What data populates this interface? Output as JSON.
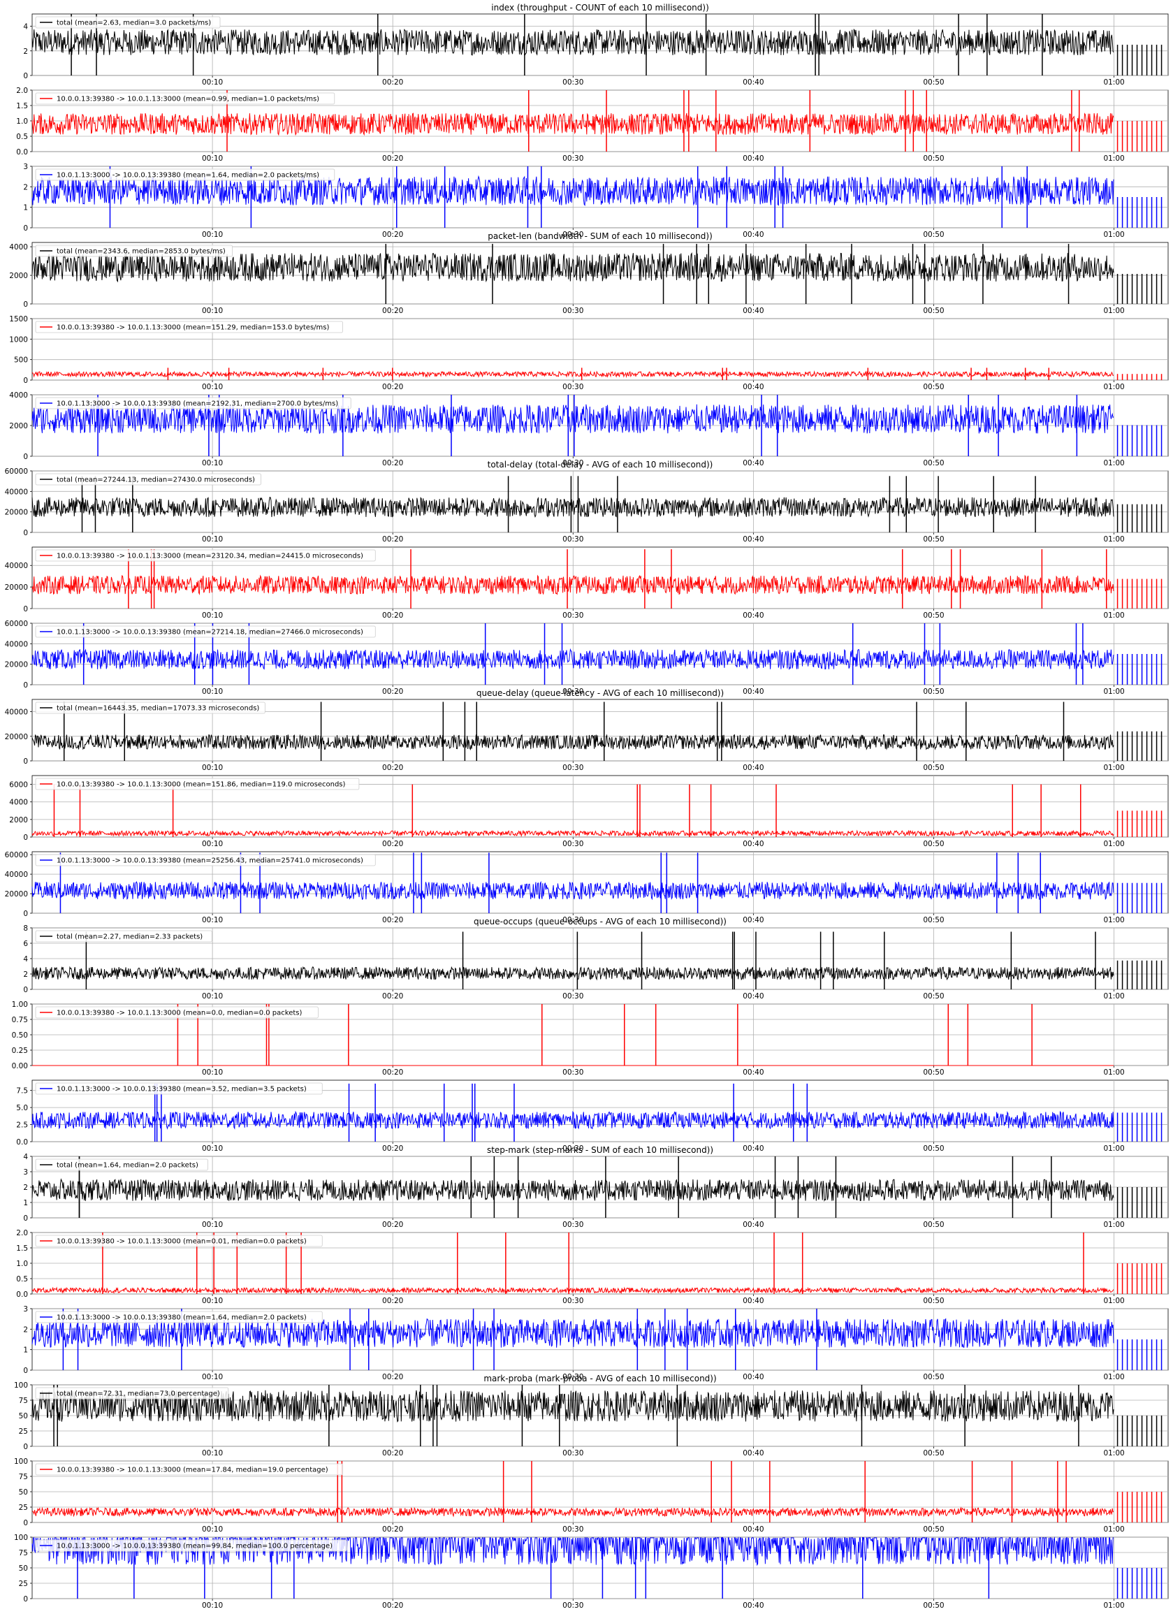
{
  "chart_data": {
    "type": "line",
    "x_tick_labels": [
      "00:10",
      "00:20",
      "00:30",
      "00:40",
      "00:50",
      "01:00"
    ],
    "x_tick_minutes": [
      10,
      20,
      30,
      40,
      50,
      60
    ],
    "x_range_minutes": [
      0,
      63
    ],
    "grid": true,
    "legend_position": "upper left",
    "colors": {
      "total": "#000000",
      "up": "#ff0000",
      "down": "#0000ff"
    },
    "groups": [
      {
        "title": "index (throughput - COUNT of each 10 millisecond))",
        "panels": [
          {
            "series": "total",
            "legend": "total (mean=2.63, median=3.0 packets/ms)",
            "ylim": [
              0,
              5
            ],
            "yticks": [
              "0",
              "2",
              "4"
            ],
            "ytick_values": [
              0,
              2,
              4
            ],
            "mean": 2.63,
            "median": 3.0,
            "spike_max": 5
          },
          {
            "series": "up",
            "legend": "10.0.0.13:39380 -> 10.0.1.13:3000 (mean=0.99, median=1.0 packets/ms)",
            "ylim": [
              0,
              2
            ],
            "yticks": [
              "0.0",
              "0.5",
              "1.0",
              "1.5",
              "2.0"
            ],
            "ytick_values": [
              0,
              0.5,
              1,
              1.5,
              2
            ],
            "mean": 0.99,
            "median": 1.0,
            "spike_max": 2
          },
          {
            "series": "down",
            "legend": "10.0.1.13:3000 -> 10.0.0.13:39380 (mean=1.64, median=2.0 packets/ms)",
            "ylim": [
              0,
              3
            ],
            "yticks": [
              "0",
              "1",
              "2",
              "3"
            ],
            "ytick_values": [
              0,
              1,
              2,
              3
            ],
            "mean": 1.64,
            "median": 2.0,
            "spike_max": 3
          }
        ]
      },
      {
        "title": "packet-len (bandwidth - SUM of each 10 millisecond))",
        "panels": [
          {
            "series": "total",
            "legend": "total (mean=2343.6, median=2853.0 bytes/ms)",
            "ylim": [
              0,
              4300
            ],
            "yticks": [
              "0",
              "2000",
              "4000"
            ],
            "ytick_values": [
              0,
              2000,
              4000
            ],
            "mean": 2343.6,
            "median": 2853.0,
            "spike_max": 4200
          },
          {
            "series": "up",
            "legend": "10.0.0.13:39380 -> 10.0.1.13:3000 (mean=151.29, median=153.0 bytes/ms)",
            "ylim": [
              0,
              1500
            ],
            "yticks": [
              "0",
              "500",
              "1000",
              "1500"
            ],
            "ytick_values": [
              0,
              500,
              1000,
              1500
            ],
            "mean": 151.29,
            "median": 153.0,
            "spike_max": 300
          },
          {
            "series": "down",
            "legend": "10.0.1.13:3000 -> 10.0.0.13:39380 (mean=2192.31, median=2700.0 bytes/ms)",
            "ylim": [
              0,
              4000
            ],
            "yticks": [
              "0",
              "2000",
              "4000"
            ],
            "ytick_values": [
              0,
              2000,
              4000
            ],
            "mean": 2192.31,
            "median": 2700.0,
            "spike_max": 4050
          }
        ]
      },
      {
        "title": "total-delay (total-delay - AVG of each 10 millisecond))",
        "panels": [
          {
            "series": "total",
            "legend": "total (mean=27244.13, median=27430.0 microseconds)",
            "ylim": [
              0,
              60000
            ],
            "yticks": [
              "0",
              "20000",
              "40000",
              "60000"
            ],
            "ytick_values": [
              0,
              20000,
              40000,
              60000
            ],
            "mean": 27244.13,
            "median": 27430.0,
            "spike_max": 55000
          },
          {
            "series": "up",
            "legend": "10.0.0.13:39380 -> 10.0.1.13:3000 (mean=23120.34, median=24415.0 microseconds)",
            "ylim": [
              0,
              57000
            ],
            "yticks": [
              "0",
              "20000",
              "40000"
            ],
            "ytick_values": [
              0,
              20000,
              40000
            ],
            "mean": 23120.34,
            "median": 24415.0,
            "spike_max": 55000
          },
          {
            "series": "down",
            "legend": "10.0.1.13:3000 -> 10.0.0.13:39380 (mean=27214.18, median=27466.0 microseconds)",
            "ylim": [
              0,
              60000
            ],
            "yticks": [
              "0",
              "20000",
              "40000",
              "60000"
            ],
            "ytick_values": [
              0,
              20000,
              40000,
              60000
            ],
            "mean": 27214.18,
            "median": 27466.0,
            "spike_max": 60000
          }
        ]
      },
      {
        "title": "queue-delay (queue-latency - AVG of each 10 millisecond))",
        "panels": [
          {
            "series": "total",
            "legend": "total (mean=16443.35, median=17073.33 microseconds)",
            "ylim": [
              0,
              50000
            ],
            "yticks": [
              "0",
              "20000",
              "40000"
            ],
            "ytick_values": [
              0,
              20000,
              40000
            ],
            "mean": 16443.35,
            "median": 17073.33,
            "spike_max": 48000
          },
          {
            "series": "up",
            "legend": "10.0.0.13:39380 -> 10.0.1.13:3000 (mean=151.86, median=119.0 microseconds)",
            "ylim": [
              0,
              7000
            ],
            "yticks": [
              "0",
              "2000",
              "4000",
              "6000"
            ],
            "ytick_values": [
              0,
              2000,
              4000,
              6000
            ],
            "mean": 151.86,
            "median": 119.0,
            "spike_max": 6000
          },
          {
            "series": "down",
            "legend": "10.0.1.13:3000 -> 10.0.0.13:39380 (mean=25256.43, median=25741.0 microseconds)",
            "ylim": [
              0,
              63000
            ],
            "yticks": [
              "0",
              "20000",
              "40000",
              "60000"
            ],
            "ytick_values": [
              0,
              20000,
              40000,
              60000
            ],
            "mean": 25256.43,
            "median": 25741.0,
            "spike_max": 62000
          }
        ]
      },
      {
        "title": "queue-occups (queue-occups - AVG of each 10 millisecond))",
        "panels": [
          {
            "series": "total",
            "legend": "total (mean=2.27, median=2.33 packets)",
            "ylim": [
              0,
              8
            ],
            "yticks": [
              "0",
              "2",
              "4",
              "6",
              "8"
            ],
            "ytick_values": [
              0,
              2,
              4,
              6,
              8
            ],
            "mean": 2.27,
            "median": 2.33,
            "spike_max": 7.5
          },
          {
            "series": "up",
            "legend": "10.0.0.13:39380 -> 10.0.1.13:3000 (mean=0.0, median=0.0 packets)",
            "ylim": [
              0,
              1
            ],
            "yticks": [
              "0.00",
              "0.25",
              "0.50",
              "0.75",
              "1.00"
            ],
            "ytick_values": [
              0,
              0.25,
              0.5,
              0.75,
              1
            ],
            "mean": 0.0,
            "median": 0.0,
            "spike_max": 1
          },
          {
            "series": "down",
            "legend": "10.0.1.13:3000 -> 10.0.0.13:39380 (mean=3.52, median=3.5 packets)",
            "ylim": [
              0,
              9
            ],
            "yticks": [
              "0.0",
              "2.5",
              "5.0",
              "7.5"
            ],
            "ytick_values": [
              0,
              2.5,
              5,
              7.5
            ],
            "mean": 3.52,
            "median": 3.5,
            "spike_max": 8.5
          }
        ]
      },
      {
        "title": "step-mark (step-marks - SUM of each 10 millisecond))",
        "panels": [
          {
            "series": "total",
            "legend": "total (mean=1.64, median=2.0 packets)",
            "ylim": [
              0,
              4
            ],
            "yticks": [
              "0",
              "1",
              "2",
              "3",
              "4"
            ],
            "ytick_values": [
              0,
              1,
              2,
              3,
              4
            ],
            "mean": 1.64,
            "median": 2.0,
            "spike_max": 4
          },
          {
            "series": "up",
            "legend": "10.0.0.13:39380 -> 10.0.1.13:3000 (mean=0.01, median=0.0 packets)",
            "ylim": [
              0,
              2
            ],
            "yticks": [
              "0.0",
              "0.5",
              "1.0",
              "1.5",
              "2.0"
            ],
            "ytick_values": [
              0,
              0.5,
              1,
              1.5,
              2
            ],
            "mean": 0.01,
            "median": 0.0,
            "spike_max": 2
          },
          {
            "series": "down",
            "legend": "10.0.1.13:3000 -> 10.0.0.13:39380 (mean=1.64, median=2.0 packets)",
            "ylim": [
              0,
              3
            ],
            "yticks": [
              "0",
              "1",
              "2",
              "3"
            ],
            "ytick_values": [
              0,
              1,
              2,
              3
            ],
            "mean": 1.64,
            "median": 2.0,
            "spike_max": 3
          }
        ]
      },
      {
        "title": "mark-proba (mark-proba - AVG of each 10 millisecond))",
        "panels": [
          {
            "series": "total",
            "legend": "total (mean=72.31, median=73.0 percentage)",
            "ylim": [
              0,
              100
            ],
            "yticks": [
              "0",
              "25",
              "50",
              "75",
              "100"
            ],
            "ytick_values": [
              0,
              25,
              50,
              75,
              100
            ],
            "mean": 72.31,
            "median": 73.0,
            "spike_max": 100
          },
          {
            "series": "up",
            "legend": "10.0.0.13:39380 -> 10.0.1.13:3000 (mean=17.84, median=19.0 percentage)",
            "ylim": [
              0,
              100
            ],
            "yticks": [
              "0",
              "25",
              "50",
              "75",
              "100"
            ],
            "ytick_values": [
              0,
              25,
              50,
              75,
              100
            ],
            "mean": 17.84,
            "median": 19.0,
            "spike_max": 100
          },
          {
            "series": "down",
            "legend": "10.0.1.13:3000 -> 10.0.0.13:39380 (mean=99.84, median=100.0 percentage)",
            "ylim": [
              0,
              100
            ],
            "yticks": [
              "0",
              "25",
              "50",
              "75",
              "100"
            ],
            "ytick_values": [
              0,
              25,
              50,
              75,
              100
            ],
            "mean": 99.84,
            "median": 100.0,
            "spike_max": 100
          }
        ]
      }
    ]
  }
}
